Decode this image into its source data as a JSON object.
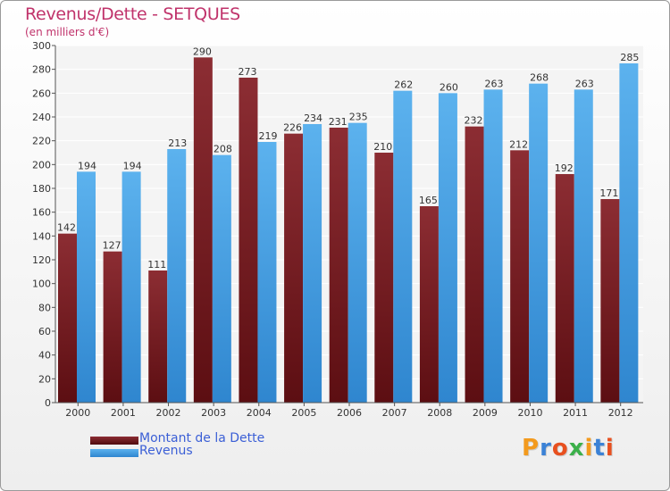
{
  "title": "Revenus/Dette - SETQUES",
  "subtitle": "(en milliers d'€)",
  "logo_text": "Proxiti",
  "colors": {
    "title": "#c0336b",
    "debt_bar": "#7a1f25",
    "revenue_bar": "#4aa3e6",
    "legend_text": "#3b5fd6",
    "logo_letters": [
      "#f39a1d",
      "#3b82d6",
      "#e8501f",
      "#3bb04a",
      "#f39a1d",
      "#3b82d6",
      "#e8501f"
    ]
  },
  "chart_data": {
    "type": "bar",
    "title": "Revenus/Dette - SETQUES",
    "subtitle": "(en milliers d'€)",
    "xlabel": "",
    "ylabel": "",
    "ylim": [
      0,
      300
    ],
    "yticks": [
      0,
      20,
      40,
      60,
      80,
      100,
      120,
      140,
      160,
      180,
      200,
      220,
      240,
      260,
      280,
      300
    ],
    "grid": true,
    "legend_position": "bottom-left",
    "categories": [
      "2000",
      "2001",
      "2002",
      "2003",
      "2004",
      "2005",
      "2006",
      "2007",
      "2008",
      "2009",
      "2010",
      "2011",
      "2012"
    ],
    "series": [
      {
        "name": "Montant de la Dette",
        "color": "#7a1f25",
        "values": [
          142,
          127,
          111,
          290,
          273,
          226,
          231,
          210,
          165,
          232,
          212,
          192,
          171
        ]
      },
      {
        "name": "Revenus",
        "color": "#4aa3e6",
        "values": [
          194,
          194,
          213,
          208,
          219,
          234,
          235,
          262,
          260,
          263,
          268,
          263,
          285
        ]
      }
    ]
  }
}
